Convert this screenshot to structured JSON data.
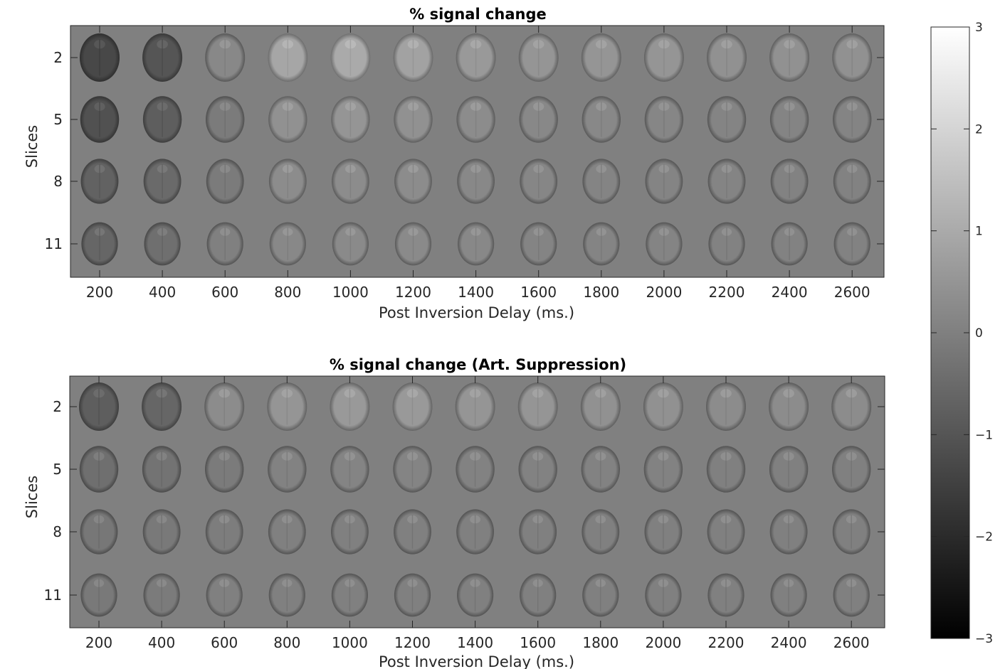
{
  "chart_data": [
    {
      "type": "heatmap",
      "title": "% signal change",
      "xlabel": "Post Inversion Delay (ms.)",
      "ylabel": "Slices",
      "x_ticks": [
        "200",
        "400",
        "600",
        "800",
        "1000",
        "1200",
        "1400",
        "1600",
        "1800",
        "2000",
        "2200",
        "2400",
        "2600"
      ],
      "y_ticks": [
        "2",
        "5",
        "8",
        "11"
      ],
      "x": [
        200,
        400,
        600,
        800,
        1000,
        1200,
        1400,
        1600,
        1800,
        2000,
        2200,
        2400,
        2600
      ],
      "slices": [
        2,
        5,
        8,
        11
      ],
      "mean_signal_change": [
        [
          -1.3,
          -1.0,
          0.2,
          0.9,
          1.0,
          0.8,
          0.6,
          0.5,
          0.5,
          0.5,
          0.4,
          0.4,
          0.4
        ],
        [
          -1.1,
          -0.8,
          -0.1,
          0.4,
          0.5,
          0.4,
          0.3,
          0.2,
          0.2,
          0.15,
          0.1,
          0.1,
          0.1
        ],
        [
          -0.7,
          -0.5,
          -0.1,
          0.3,
          0.3,
          0.3,
          0.2,
          0.15,
          0.1,
          0.1,
          0.1,
          0.05,
          0.05
        ],
        [
          -0.6,
          -0.4,
          0.0,
          0.2,
          0.25,
          0.25,
          0.2,
          0.1,
          0.1,
          0.1,
          0.05,
          0.05,
          0.05
        ]
      ]
    },
    {
      "type": "heatmap",
      "title": "% signal change (Art. Suppression)",
      "xlabel": "Post Inversion Delay (ms.)",
      "ylabel": "Slices",
      "x_ticks": [
        "200",
        "400",
        "600",
        "800",
        "1000",
        "1200",
        "1400",
        "1600",
        "1800",
        "2000",
        "2200",
        "2400",
        "2600"
      ],
      "y_ticks": [
        "2",
        "5",
        "8",
        "11"
      ],
      "x": [
        200,
        400,
        600,
        800,
        1000,
        1200,
        1400,
        1600,
        1800,
        2000,
        2200,
        2400,
        2600
      ],
      "slices": [
        2,
        5,
        8,
        11
      ],
      "mean_signal_change": [
        [
          -0.8,
          -0.6,
          0.3,
          0.5,
          0.6,
          0.6,
          0.5,
          0.5,
          0.4,
          0.4,
          0.3,
          0.3,
          0.3
        ],
        [
          -0.4,
          -0.3,
          -0.1,
          0.05,
          0.1,
          0.1,
          0.05,
          0.05,
          0.05,
          0.05,
          0.0,
          0.0,
          0.0
        ],
        [
          -0.2,
          -0.15,
          -0.05,
          0.0,
          0.0,
          0.0,
          0.0,
          0.0,
          0.0,
          0.0,
          0.0,
          0.0,
          0.0
        ],
        [
          -0.15,
          -0.1,
          0.0,
          0.0,
          0.0,
          0.0,
          0.0,
          0.0,
          0.0,
          0.0,
          0.0,
          0.0,
          0.0
        ]
      ]
    }
  ],
  "colorbar": {
    "colormap": "gray",
    "clim": [
      -3,
      3
    ],
    "ticks": [
      "3",
      "2",
      "1",
      "0",
      "−1",
      "−2",
      "−3"
    ],
    "tick_values": [
      3,
      2,
      1,
      0,
      -1,
      -2,
      -3
    ]
  }
}
